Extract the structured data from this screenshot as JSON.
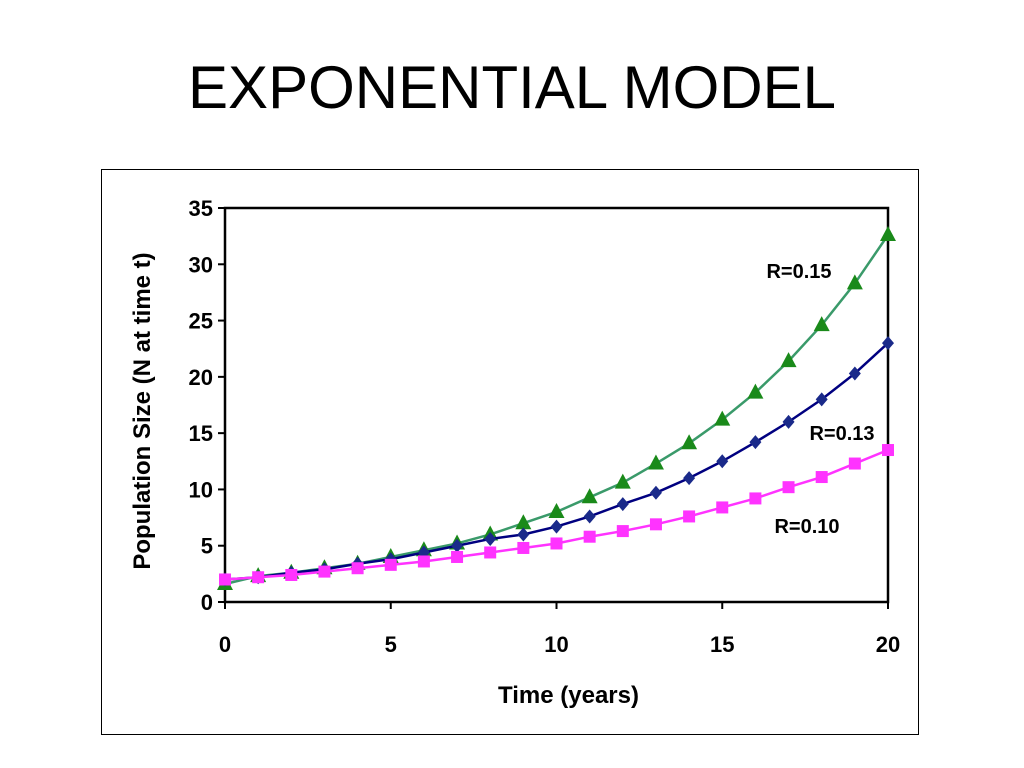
{
  "slide": {
    "title": "EXPONENTIAL MODEL"
  },
  "chart_data": {
    "type": "line",
    "title": "",
    "xlabel": "Time (years)",
    "ylabel": "Population Size (N at time t)",
    "xlim": [
      0,
      20
    ],
    "ylim": [
      0,
      35
    ],
    "xticks": [
      0,
      5,
      10,
      15,
      20
    ],
    "yticks": [
      0,
      5,
      10,
      15,
      20,
      25,
      30,
      35
    ],
    "grid": false,
    "legend": "none",
    "x": [
      0,
      1,
      2,
      3,
      4,
      5,
      6,
      7,
      8,
      9,
      10,
      11,
      12,
      13,
      14,
      15,
      16,
      17,
      18,
      19,
      20
    ],
    "series": [
      {
        "label": "R=0.15",
        "marker": "triangle",
        "line_color": "#3a9a6a",
        "marker_color": "#1a8a1a",
        "values": [
          1.6,
          2.3,
          2.6,
          3.0,
          3.4,
          4.0,
          4.6,
          5.2,
          6.0,
          7.0,
          8.0,
          9.3,
          10.6,
          12.3,
          14.1,
          16.2,
          18.6,
          21.4,
          24.6,
          28.3,
          32.6
        ]
      },
      {
        "label": "R=0.13",
        "marker": "diamond",
        "line_color": "#000080",
        "marker_color": "#1a2a8a",
        "values": [
          2.0,
          2.2,
          2.6,
          2.9,
          3.4,
          3.8,
          4.4,
          5.0,
          5.6,
          6.0,
          6.7,
          7.6,
          8.7,
          9.7,
          11.0,
          12.5,
          14.2,
          16.0,
          18.0,
          20.3,
          23.0
        ]
      },
      {
        "label": "R=0.10",
        "marker": "square",
        "line_color": "#ff33ff",
        "marker_color": "#ff33ff",
        "values": [
          2.0,
          2.2,
          2.4,
          2.7,
          3.0,
          3.3,
          3.6,
          4.0,
          4.4,
          4.8,
          5.2,
          5.8,
          6.3,
          6.9,
          7.6,
          8.4,
          9.2,
          10.2,
          11.1,
          12.3,
          13.5
        ]
      }
    ]
  }
}
